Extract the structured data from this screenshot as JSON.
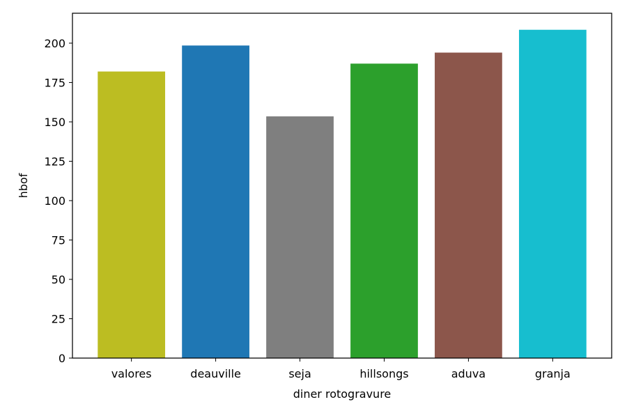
{
  "chart_data": {
    "type": "bar",
    "title": "",
    "xlabel": "diner rotogravure",
    "ylabel": "hbof",
    "categories": [
      "valores",
      "deauville",
      "seja",
      "hillsongs",
      "aduva",
      "granja"
    ],
    "values": [
      182,
      198.5,
      153.5,
      187,
      194,
      208.5
    ],
    "colors": [
      "#bcbd22",
      "#1f77b4",
      "#7f7f7f",
      "#2ca02c",
      "#8c564b",
      "#17becf"
    ],
    "ylim": [
      0,
      219
    ],
    "yticks": [
      0,
      25,
      50,
      75,
      100,
      125,
      150,
      175,
      200
    ],
    "grid": false,
    "legend": "none"
  }
}
